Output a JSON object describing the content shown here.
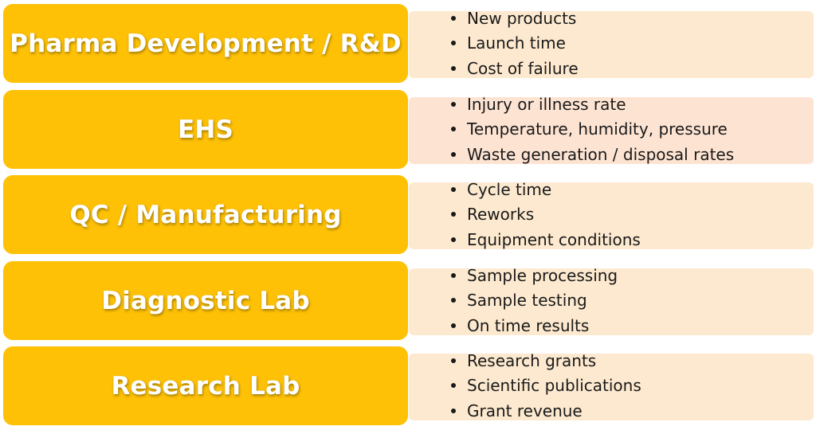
{
  "rows": [
    {
      "label": "Pharma Development / R&D",
      "items": [
        "New products",
        "Launch time",
        "Cost of failure"
      ]
    },
    {
      "label": "EHS",
      "items": [
        "Injury or illness rate",
        "Temperature, humidity, pressure",
        "Waste generation / disposal rates"
      ]
    },
    {
      "label": "QC / Manufacturing",
      "items": [
        "Cycle time",
        "Reworks",
        "Equipment conditions"
      ]
    },
    {
      "label": "Diagnostic Lab",
      "items": [
        "Sample processing",
        "Sample testing",
        "On time results"
      ]
    },
    {
      "label": "Research Lab",
      "items": [
        "Research grants",
        "Scientific publications",
        "Grant revenue"
      ]
    }
  ],
  "colors": {
    "label_fill": "#fec106",
    "panel_fill": "#fde9cf",
    "panel_fill_alt": "#fde3d2",
    "label_text": "#ffffff",
    "bullet_text": "#1a1a1a"
  }
}
